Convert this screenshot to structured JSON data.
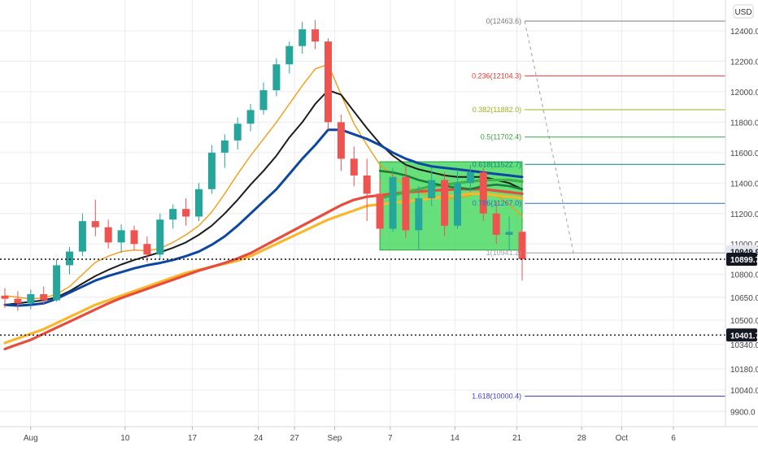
{
  "currency_button": "USD",
  "colors": {
    "up": "#26a69a",
    "down": "#ef5350",
    "grid": "#e9ecf2",
    "axis_text": "#444444"
  },
  "chart_data": {
    "type": "candlestick",
    "x_tick_labels": [
      "Aug",
      "10",
      "17",
      "24",
      "27",
      "Sep",
      "7",
      "14",
      "21",
      "28",
      "Oct",
      "6"
    ],
    "y_tick_labels": [
      "12400.0",
      "12200.0",
      "12000.0",
      "11800.0",
      "11600.0",
      "11400.0",
      "11200.0",
      "11000.0",
      "10800.0",
      "10650.0",
      "10500.0",
      "10340.0",
      "10180.0",
      "10040.0",
      "9900.0"
    ],
    "y_range": [
      9800,
      12560
    ],
    "price_tags": [
      {
        "label": "10949.9",
        "value": 10949.9,
        "style": "grey"
      },
      {
        "label": "10899.7",
        "value": 10899.7,
        "style": "dark"
      },
      {
        "label": "10401.7",
        "value": 10401.7,
        "style": "dark"
      }
    ],
    "horizontal_levels": [
      {
        "value": 10899.7,
        "style": "dotted"
      },
      {
        "value": 10401.7,
        "style": "dotted"
      }
    ],
    "fib_levels": [
      {
        "label": "0(12463.6)",
        "value": 12463.6,
        "color": "#787b86"
      },
      {
        "label": "0.236(12104.3)",
        "value": 12104.3,
        "color": "#e53935"
      },
      {
        "label": "0.382(11882.0)",
        "value": 11882.0,
        "color": "#9fb11c"
      },
      {
        "label": "0.5(11702.4)",
        "value": 11702.4,
        "color": "#43a047"
      },
      {
        "label": "0.618(11522.7)",
        "value": 11522.7,
        "color": "#00897b"
      },
      {
        "label": "0.786(11267.0)",
        "value": 11267.0,
        "color": "#2a6fd1"
      },
      {
        "label": "1(10941.2)",
        "value": 10941.2,
        "color": "#9aa0a6"
      },
      {
        "label": "1.618(10000.4)",
        "value": 10000.4,
        "color": "#3f3fd8"
      }
    ],
    "range_box": {
      "x_from": 29,
      "x_to": 40,
      "y_from": 10960,
      "y_to": 11540,
      "color": "#4cd964"
    },
    "candles": [
      {
        "o": 10660,
        "h": 10710,
        "l": 10580,
        "c": 10640
      },
      {
        "o": 10640,
        "h": 10690,
        "l": 10560,
        "c": 10610
      },
      {
        "o": 10610,
        "h": 10700,
        "l": 10570,
        "c": 10670
      },
      {
        "o": 10670,
        "h": 10720,
        "l": 10600,
        "c": 10630
      },
      {
        "o": 10630,
        "h": 10900,
        "l": 10620,
        "c": 10860
      },
      {
        "o": 10860,
        "h": 10980,
        "l": 10800,
        "c": 10950
      },
      {
        "o": 10950,
        "h": 11200,
        "l": 10920,
        "c": 11150
      },
      {
        "o": 11150,
        "h": 11290,
        "l": 11050,
        "c": 11110
      },
      {
        "o": 11110,
        "h": 11160,
        "l": 10970,
        "c": 11010
      },
      {
        "o": 11010,
        "h": 11130,
        "l": 10940,
        "c": 11090
      },
      {
        "o": 11090,
        "h": 11120,
        "l": 10960,
        "c": 11000
      },
      {
        "o": 11000,
        "h": 11050,
        "l": 10880,
        "c": 10930
      },
      {
        "o": 10930,
        "h": 11200,
        "l": 10900,
        "c": 11160
      },
      {
        "o": 11160,
        "h": 11260,
        "l": 11100,
        "c": 11230
      },
      {
        "o": 11230,
        "h": 11300,
        "l": 11120,
        "c": 11180
      },
      {
        "o": 11180,
        "h": 11400,
        "l": 11150,
        "c": 11360
      },
      {
        "o": 11360,
        "h": 11650,
        "l": 11330,
        "c": 11600
      },
      {
        "o": 11600,
        "h": 11720,
        "l": 11500,
        "c": 11680
      },
      {
        "o": 11680,
        "h": 11830,
        "l": 11620,
        "c": 11790
      },
      {
        "o": 11790,
        "h": 11920,
        "l": 11740,
        "c": 11880
      },
      {
        "o": 11880,
        "h": 12060,
        "l": 11850,
        "c": 12010
      },
      {
        "o": 12010,
        "h": 12220,
        "l": 11970,
        "c": 12180
      },
      {
        "o": 12180,
        "h": 12330,
        "l": 12120,
        "c": 12300
      },
      {
        "o": 12300,
        "h": 12460,
        "l": 12250,
        "c": 12410
      },
      {
        "o": 12410,
        "h": 12470,
        "l": 12280,
        "c": 12330
      },
      {
        "o": 12330,
        "h": 12350,
        "l": 11750,
        "c": 11800
      },
      {
        "o": 11800,
        "h": 11850,
        "l": 11480,
        "c": 11560
      },
      {
        "o": 11560,
        "h": 11640,
        "l": 11380,
        "c": 11450
      },
      {
        "o": 11450,
        "h": 11560,
        "l": 11150,
        "c": 11330
      },
      {
        "o": 11330,
        "h": 11420,
        "l": 11050,
        "c": 11100
      },
      {
        "o": 11100,
        "h": 11500,
        "l": 11080,
        "c": 11440
      },
      {
        "o": 11440,
        "h": 11520,
        "l": 11040,
        "c": 11090
      },
      {
        "o": 11090,
        "h": 11380,
        "l": 10960,
        "c": 11300
      },
      {
        "o": 11300,
        "h": 11500,
        "l": 11250,
        "c": 11420
      },
      {
        "o": 11420,
        "h": 11470,
        "l": 11050,
        "c": 11120
      },
      {
        "o": 11120,
        "h": 11490,
        "l": 11100,
        "c": 11400
      },
      {
        "o": 11400,
        "h": 11520,
        "l": 11340,
        "c": 11470
      },
      {
        "o": 11470,
        "h": 11500,
        "l": 11150,
        "c": 11200
      },
      {
        "o": 11200,
        "h": 11280,
        "l": 11000,
        "c": 11060
      },
      {
        "o": 11060,
        "h": 11180,
        "l": 10960,
        "c": 11080
      },
      {
        "o": 11080,
        "h": 11100,
        "l": 10760,
        "c": 10900
      }
    ],
    "series": [
      {
        "color": "#f39c12",
        "width": 1.4,
        "values": [
          10660,
          10650,
          10640,
          10645,
          10670,
          10720,
          10800,
          10880,
          10920,
          10950,
          10960,
          10955,
          10970,
          11010,
          11060,
          11120,
          11210,
          11330,
          11460,
          11580,
          11690,
          11800,
          11920,
          12040,
          12150,
          12180,
          11980,
          11790,
          11650,
          11520,
          11450,
          11380,
          11340,
          11320,
          11300,
          11300,
          11320,
          11340,
          11320,
          11260,
          11180
        ]
      },
      {
        "color": "#1c1c1c",
        "width": 2,
        "values": [
          10600,
          10610,
          10620,
          10630,
          10650,
          10690,
          10740,
          10790,
          10830,
          10865,
          10895,
          10920,
          10945,
          10975,
          11010,
          11060,
          11120,
          11200,
          11290,
          11390,
          11480,
          11580,
          11700,
          11800,
          11920,
          12010,
          11980,
          11870,
          11760,
          11660,
          11580,
          11520,
          11490,
          11470,
          11450,
          11440,
          11440,
          11440,
          11420,
          11400,
          11360
        ]
      },
      {
        "color": "#0d47a1",
        "width": 3,
        "values": [
          10600,
          10595,
          10600,
          10610,
          10640,
          10680,
          10720,
          10760,
          10790,
          10815,
          10840,
          10860,
          10875,
          10895,
          10920,
          10950,
          10995,
          11050,
          11120,
          11200,
          11280,
          11360,
          11460,
          11560,
          11650,
          11750,
          11750,
          11720,
          11690,
          11650,
          11600,
          11560,
          11530,
          11510,
          11500,
          11490,
          11480,
          11470,
          11460,
          11450,
          11440
        ]
      },
      {
        "color": "#f9b82b",
        "width": 3.2,
        "values": [
          10350,
          10380,
          10410,
          10440,
          10480,
          10520,
          10560,
          10600,
          10630,
          10660,
          10690,
          10720,
          10750,
          10780,
          10810,
          10830,
          10850,
          10870,
          10890,
          10920,
          10960,
          11000,
          11040,
          11080,
          11120,
          11160,
          11190,
          11220,
          11250,
          11260,
          11270,
          11280,
          11290,
          11300,
          11310,
          11320,
          11330,
          11330,
          11320,
          11310,
          11300
        ]
      },
      {
        "color": "#e74c3c",
        "width": 3.2,
        "values": [
          10310,
          10340,
          10370,
          10410,
          10450,
          10490,
          10530,
          10570,
          10610,
          10645,
          10675,
          10705,
          10735,
          10765,
          10795,
          10825,
          10850,
          10875,
          10905,
          10940,
          10985,
          11030,
          11075,
          11120,
          11165,
          11210,
          11255,
          11290,
          11310,
          11320,
          11330,
          11340,
          11345,
          11350,
          11355,
          11360,
          11360,
          11360,
          11350,
          11340,
          11330
        ]
      },
      {
        "color": "#3fb24b",
        "width": 3.2,
        "values": [
          null,
          null,
          null,
          null,
          null,
          null,
          null,
          null,
          null,
          null,
          null,
          null,
          null,
          null,
          null,
          null,
          null,
          null,
          null,
          null,
          null,
          null,
          null,
          null,
          null,
          null,
          null,
          null,
          null,
          11300,
          11320,
          11340,
          11360,
          11380,
          11390,
          11400,
          11410,
          11420,
          11420,
          11420,
          11410
        ]
      },
      {
        "color": "#1b7d3a",
        "width": 2.6,
        "values": [
          null,
          null,
          null,
          null,
          null,
          null,
          null,
          null,
          null,
          null,
          null,
          null,
          null,
          null,
          null,
          null,
          null,
          null,
          null,
          null,
          null,
          null,
          null,
          null,
          null,
          null,
          null,
          null,
          null,
          11480,
          11470,
          11450,
          11420,
          11400,
          11380,
          11370,
          11360,
          11380,
          11390,
          11380,
          11360
        ]
      }
    ]
  }
}
